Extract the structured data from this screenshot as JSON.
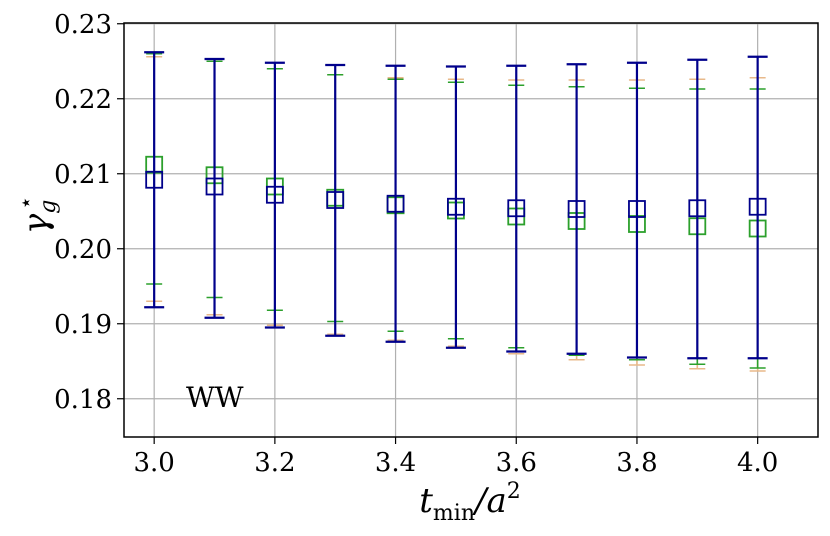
{
  "chart_data": {
    "type": "scatter",
    "title": "",
    "xlabel": "t_min/a^2",
    "xlabel_main": "t",
    "xlabel_sub": "min",
    "xlabel_den": "/a",
    "xlabel_sup": "2",
    "ylabel": "γ_g*",
    "ylabel_main": "γ",
    "ylabel_sub": "g",
    "ylabel_sup": "⋆",
    "xlim": [
      2.95,
      4.1
    ],
    "ylim": [
      0.1749,
      0.2301
    ],
    "xticks": [
      3.0,
      3.2,
      3.4,
      3.6,
      3.8,
      4.0
    ],
    "xtick_labels": [
      "3.0",
      "3.2",
      "3.4",
      "3.6",
      "3.8",
      "4.0"
    ],
    "yticks": [
      0.18,
      0.19,
      0.2,
      0.21,
      0.22,
      0.23
    ],
    "ytick_labels": [
      "0.18",
      "0.19",
      "0.20",
      "0.21",
      "0.22",
      "0.23"
    ],
    "grid": true,
    "annotation": "WW",
    "series": [
      {
        "name": "orange",
        "color": "#e8b98a",
        "marker": "none",
        "x": [
          3.0,
          3.1,
          3.2,
          3.3,
          3.4,
          3.5,
          3.6,
          3.7,
          3.8,
          3.9,
          4.0
        ],
        "y": [
          0.2093,
          0.2082,
          0.2069,
          0.2058,
          0.2052,
          0.2048,
          0.2042,
          0.2038,
          0.2035,
          0.2033,
          0.2032
        ],
        "lo": [
          0.193,
          0.1912,
          0.1898,
          0.1886,
          0.1878,
          0.187,
          0.186,
          0.1852,
          0.1845,
          0.184,
          0.1837
        ],
        "hi": [
          0.2256,
          0.225,
          0.224,
          0.2232,
          0.2228,
          0.2226,
          0.2225,
          0.2225,
          0.2225,
          0.2226,
          0.2228
        ]
      },
      {
        "name": "green",
        "color": "#2ca02c",
        "marker": "square",
        "x": [
          3.0,
          3.1,
          3.2,
          3.3,
          3.4,
          3.5,
          3.6,
          3.7,
          3.8,
          3.9,
          4.0
        ],
        "y": [
          0.2112,
          0.2098,
          0.2083,
          0.2068,
          0.2058,
          0.2051,
          0.2043,
          0.2037,
          0.2033,
          0.203,
          0.2027
        ],
        "lo": [
          0.1953,
          0.1935,
          0.1918,
          0.1903,
          0.189,
          0.188,
          0.1868,
          0.1858,
          0.1852,
          0.1846,
          0.1841
        ],
        "hi": [
          0.226,
          0.225,
          0.224,
          0.2232,
          0.2226,
          0.2222,
          0.2218,
          0.2216,
          0.2214,
          0.2213,
          0.2213
        ]
      },
      {
        "name": "navy",
        "color": "#00008b",
        "marker": "square",
        "x": [
          3.0,
          3.1,
          3.2,
          3.3,
          3.4,
          3.5,
          3.6,
          3.7,
          3.8,
          3.9,
          4.0
        ],
        "y": [
          0.2092,
          0.2083,
          0.2072,
          0.2065,
          0.206,
          0.2056,
          0.2054,
          0.2053,
          0.2053,
          0.2054,
          0.2056
        ],
        "lo": [
          0.1922,
          0.1908,
          0.1895,
          0.1884,
          0.1876,
          0.1868,
          0.1863,
          0.186,
          0.1855,
          0.1854,
          0.1854
        ],
        "hi": [
          0.2262,
          0.2253,
          0.2248,
          0.2245,
          0.2244,
          0.2243,
          0.2244,
          0.2246,
          0.2248,
          0.2252,
          0.2256
        ]
      }
    ]
  }
}
